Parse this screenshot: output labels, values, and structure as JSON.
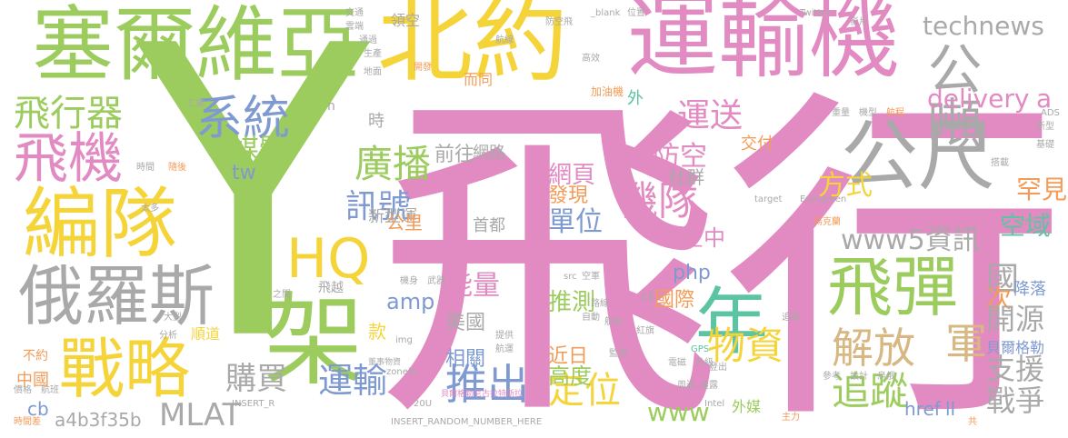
{
  "palette": {
    "pink": "#e28ac2",
    "green": "#9ccc5e",
    "yellow": "#f5d43a",
    "blue": "#7f9ad1",
    "orange": "#f39b57",
    "teal": "#5cc3a3",
    "gray": "#a9a9a9",
    "tan": "#d7b882"
  },
  "words": {
    "w01": "Y",
    "w02": "飛行",
    "w03": "北約",
    "w04": "運輸機",
    "w05": "塞爾維亞",
    "w06": "編隊",
    "w07": "俄羅斯",
    "w08": "戰略",
    "w09": "架",
    "w10": "飛機",
    "w11": "系統",
    "w12": "飛行器",
    "w13": "公噸",
    "w14": "公尺",
    "w15": "年",
    "w16": "飛彈",
    "w17": "technews",
    "w18": "HQ",
    "w19": "廣播",
    "w20": "運送",
    "w21": "訊號",
    "w22": "機隊",
    "w23": "媒體",
    "w24": "www5資訊",
    "w25": "delivery",
    "w26": "a",
    "w27": "解放",
    "w28": "軍",
    "w29": "追蹤",
    "w30": "物資",
    "w31": "推出",
    "w32": "運輸",
    "w33": "購買",
    "w34": "MLAT",
    "w35": "定位",
    "w36": "www",
    "w37": "國",
    "w38": "次",
    "w39": "開源",
    "w40": "支援",
    "w41": "戰爭",
    "w42": "方式",
    "w43": "罕見",
    "w44": "空域",
    "w45": "交付",
    "w46": "防空",
    "w47": "社群",
    "w48": "網頁",
    "w49": "發現",
    "w50": "單位",
    "w51": "空中",
    "w52": "能量",
    "w53": "推測",
    "w54": "相關",
    "w55": "高度",
    "w56": "美國",
    "w57": "近日",
    "w58": "amp",
    "w59": "php",
    "w60": "國際",
    "w61": "前往",
    "w62": "網路",
    "w63": "新型運",
    "w64": "公里",
    "w65": "首都",
    "w66": "tw",
    "w67": "時",
    "w68": "領空",
    "w69": "而同",
    "w70": "外",
    "w71": "款",
    "w72": "中國",
    "w73": "cb",
    "w74": "a4b3f35b",
    "w75": "順道",
    "w76": "不約",
    "w77": "降落",
    "w78": "貝爾格勒",
    "w79": "href",
    "w80": "ll",
    "w81": "外媒",
    "w82": "飛越",
    "w83": "INSERT_RANDOM_NUMBER_HERE",
    "w84": "INSERT_R",
    "w85": "Twitter",
    "w86": "Evergreen",
    "w87": "GPS",
    "w88": "ck",
    "w89": "target",
    "w90": "_blank",
    "w91": "Intel",
    "w92": "ADS",
    "w93": "20U",
    "w94": "img",
    "w95": "zoneid",
    "w96": "src",
    "w97": "n",
    "w98": "加油機",
    "w99": "烏克蘭",
    "w100": "貝爾格勒尼古拉特斯拉",
    "w101": "董事物資",
    "w102": "空軍",
    "w103": "航向",
    "w104": "自動",
    "w105": "航運",
    "w106": "航線",
    "w107": "基礎",
    "w108": "分析",
    "w109": "大型",
    "w110": "主力",
    "w111": "共",
    "w112": "時間差",
    "w113": "價格",
    "w114": "航班",
    "w115": "機身",
    "w116": "武器",
    "w117": "監視",
    "w118": "防空飛",
    "w119": "紅旗",
    "w120": "位置",
    "w121": "追蹤",
    "w122": "電磁",
    "w123": "升級",
    "w124": "提供",
    "w125": "登出",
    "w126": "新型",
    "w127": "周邊",
    "w128": "透露",
    "w129": "參考",
    "w130": "設計",
    "w131": "烏俄",
    "w132": "地面",
    "w133": "生產",
    "w134": "通過",
    "w135": "開發",
    "w136": "高效",
    "w137": "工業",
    "w138": "隨後",
    "w139": "太多",
    "w140": "時間",
    "w141": "雲端",
    "w142": "航程",
    "w143": "機型",
    "w144": "重量",
    "w145": "航天",
    "w146": "搭載",
    "w147": "交通",
    "w148": "路線",
    "w149": "之間",
    "w150": "影片"
  }
}
